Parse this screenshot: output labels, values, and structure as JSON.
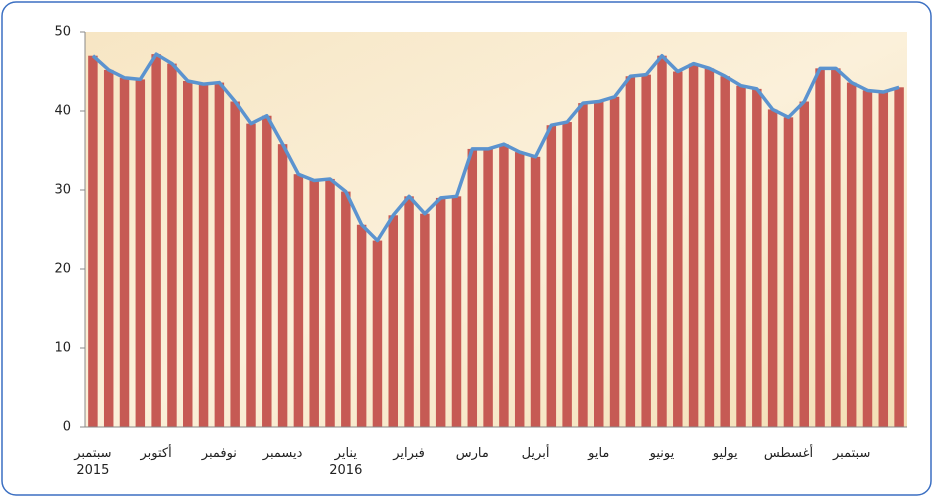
{
  "chart_data": {
    "type": "bar",
    "categories": [
      "سبتمبر\n2015",
      null,
      null,
      null,
      "أكتوبر",
      null,
      null,
      null,
      "نوفمبر",
      null,
      null,
      null,
      "ديسمبر",
      null,
      null,
      null,
      "يناير\n2016",
      null,
      null,
      null,
      "فبراير",
      null,
      null,
      null,
      "مارس",
      null,
      null,
      null,
      "أبريل",
      null,
      null,
      null,
      "مايو",
      null,
      null,
      null,
      "يونيو",
      null,
      null,
      null,
      "يوليو",
      null,
      null,
      null,
      "أغسطس",
      null,
      null,
      null,
      "سبتمبر",
      null,
      null,
      null
    ],
    "values": [
      47,
      45.2,
      44.2,
      44,
      47.2,
      46,
      43.8,
      43.4,
      43.6,
      41.2,
      38.4,
      39.4,
      35.8,
      32,
      31.2,
      31.4,
      29.8,
      25.6,
      23.6,
      26.8,
      29.2,
      27,
      29,
      29.2,
      35.2,
      35.2,
      35.8,
      34.8,
      34.2,
      38.2,
      38.6,
      41,
      41.2,
      41.8,
      44.4,
      44.6,
      47,
      45,
      46,
      45.4,
      44.4,
      43.2,
      42.8,
      40.2,
      39.2,
      41.2,
      45.4,
      45.4,
      43.6,
      42.6,
      42.4,
      43
    ],
    "color": "#c65a54",
    "line_color": "#5b93cf",
    "ylim": [
      0,
      50
    ],
    "yticks": [
      0,
      10,
      20,
      30,
      40,
      50
    ]
  }
}
